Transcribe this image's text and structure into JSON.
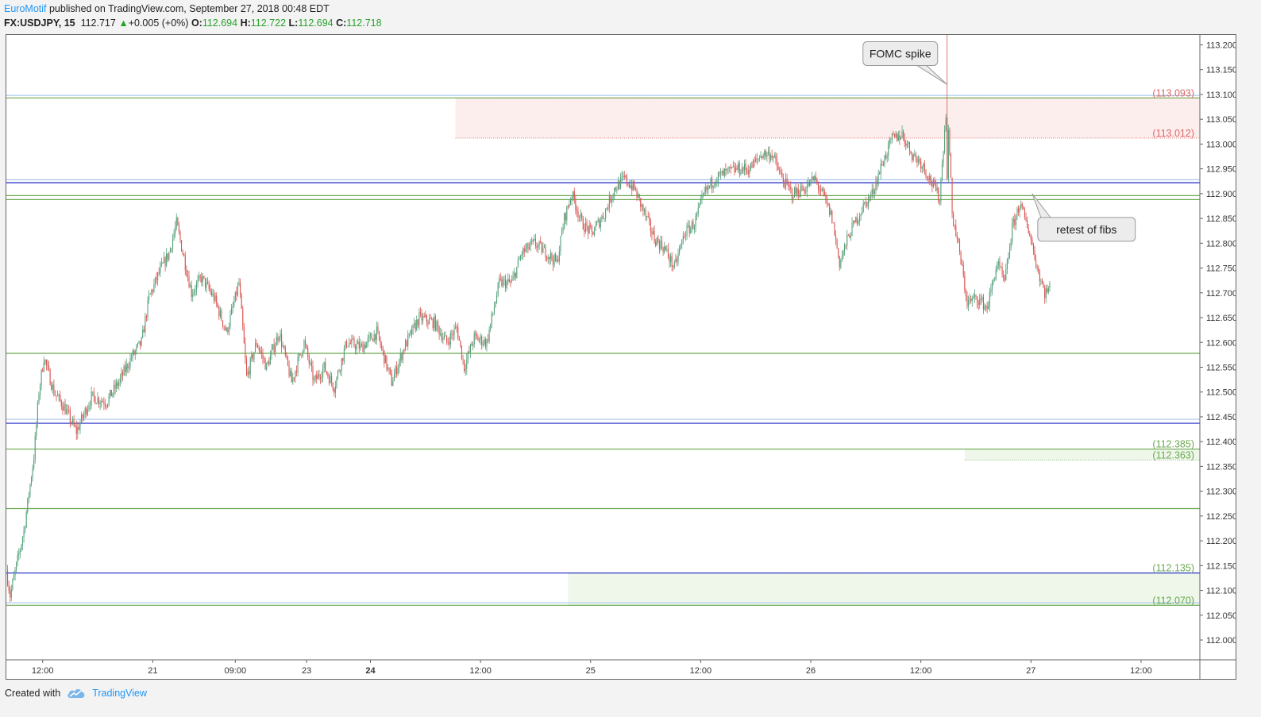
{
  "header": {
    "author": "EuroMotif",
    "published_text": " published on TradingView.com, September 27, 2018 00:48 EDT"
  },
  "symbol_line": {
    "symbol": "FX:USDJPY, 15",
    "last": "112.717",
    "change_arrow": "▲",
    "change": "+0.005 (+0%)",
    "o_label": "O:",
    "o": "112.694",
    "h_label": "H:",
    "h": "112.722",
    "l_label": "L:",
    "l": "112.694",
    "c_label": "C:",
    "c": "112.718"
  },
  "footer": {
    "created_with": "Created with",
    "brand": "TradingView",
    "logo_icon": "tradingview-cloud-icon"
  },
  "colors": {
    "up": "#53a07a",
    "down": "#d9534f",
    "green_line": "#6aa84f",
    "blue_line": "#1c25c8",
    "light_blue_line": "#a9c7ec",
    "red_zone": "#fdeeee",
    "green_zone": "#eef7ea",
    "red_label": "#e06666",
    "green_label": "#6aa84f"
  },
  "chart_data": {
    "type": "candlestick",
    "symbol": "FX:USDJPY",
    "interval": "15",
    "ylim": [
      111.96,
      113.22
    ],
    "y_ticks": [
      "112.000",
      "112.050",
      "112.100",
      "112.150",
      "112.200",
      "112.250",
      "112.300",
      "112.350",
      "112.400",
      "112.450",
      "112.500",
      "112.550",
      "112.600",
      "112.650",
      "112.700",
      "112.750",
      "112.800",
      "112.850",
      "112.900",
      "112.950",
      "113.000",
      "113.050",
      "113.100",
      "113.150",
      "113.200"
    ],
    "x_ticks": [
      {
        "label": "12:00",
        "bar": 29,
        "bold": false
      },
      {
        "label": "21",
        "bar": 117,
        "bold": false
      },
      {
        "label": "09:00",
        "bar": 183,
        "bold": false
      },
      {
        "label": "23",
        "bar": 240,
        "bold": false
      },
      {
        "label": "24",
        "bar": 291,
        "bold": true
      },
      {
        "label": "12:00",
        "bar": 379,
        "bold": false
      },
      {
        "label": "25",
        "bar": 467,
        "bold": false
      },
      {
        "label": "12:00",
        "bar": 555,
        "bold": false
      },
      {
        "label": "26",
        "bar": 643,
        "bold": false
      },
      {
        "label": "12:00",
        "bar": 731,
        "bold": false
      },
      {
        "label": "27",
        "bar": 819,
        "bold": false
      },
      {
        "label": "12:00",
        "bar": 907,
        "bold": false
      }
    ],
    "bars_visible": 954,
    "price_path": [
      [
        0,
        112.14
      ],
      [
        3,
        112.09
      ],
      [
        14,
        112.22
      ],
      [
        22,
        112.37
      ],
      [
        26,
        112.5
      ],
      [
        30,
        112.57
      ],
      [
        38,
        112.5
      ],
      [
        46,
        112.47
      ],
      [
        56,
        112.42
      ],
      [
        68,
        112.49
      ],
      [
        80,
        112.48
      ],
      [
        90,
        112.52
      ],
      [
        100,
        112.57
      ],
      [
        108,
        112.6
      ],
      [
        114,
        112.69
      ],
      [
        122,
        112.74
      ],
      [
        130,
        112.78
      ],
      [
        136,
        112.84
      ],
      [
        142,
        112.77
      ],
      [
        148,
        112.7
      ],
      [
        156,
        112.73
      ],
      [
        166,
        112.69
      ],
      [
        176,
        112.62
      ],
      [
        186,
        112.72
      ],
      [
        192,
        112.53
      ],
      [
        200,
        112.6
      ],
      [
        208,
        112.55
      ],
      [
        218,
        112.62
      ],
      [
        228,
        112.52
      ],
      [
        238,
        112.6
      ],
      [
        246,
        112.52
      ],
      [
        254,
        112.55
      ],
      [
        262,
        112.51
      ],
      [
        272,
        112.6
      ],
      [
        284,
        112.59
      ],
      [
        296,
        112.62
      ],
      [
        308,
        112.52
      ],
      [
        318,
        112.59
      ],
      [
        330,
        112.65
      ],
      [
        342,
        112.64
      ],
      [
        352,
        112.6
      ],
      [
        360,
        112.63
      ],
      [
        366,
        112.55
      ],
      [
        374,
        112.61
      ],
      [
        384,
        112.6
      ],
      [
        394,
        112.72
      ],
      [
        404,
        112.72
      ],
      [
        412,
        112.78
      ],
      [
        422,
        112.8
      ],
      [
        432,
        112.78
      ],
      [
        440,
        112.76
      ],
      [
        446,
        112.85
      ],
      [
        452,
        112.9
      ],
      [
        460,
        112.84
      ],
      [
        468,
        112.82
      ],
      [
        478,
        112.86
      ],
      [
        486,
        112.91
      ],
      [
        494,
        112.93
      ],
      [
        502,
        112.91
      ],
      [
        510,
        112.86
      ],
      [
        518,
        112.81
      ],
      [
        526,
        112.79
      ],
      [
        534,
        112.75
      ],
      [
        542,
        112.82
      ],
      [
        550,
        112.84
      ],
      [
        558,
        112.9
      ],
      [
        566,
        112.93
      ],
      [
        574,
        112.94
      ],
      [
        584,
        112.95
      ],
      [
        594,
        112.95
      ],
      [
        604,
        112.98
      ],
      [
        612,
        112.98
      ],
      [
        620,
        112.93
      ],
      [
        628,
        112.9
      ],
      [
        638,
        112.91
      ],
      [
        646,
        112.93
      ],
      [
        654,
        112.89
      ],
      [
        660,
        112.85
      ],
      [
        666,
        112.76
      ],
      [
        674,
        112.82
      ],
      [
        684,
        112.87
      ],
      [
        692,
        112.9
      ],
      [
        700,
        112.96
      ],
      [
        708,
        113.01
      ],
      [
        716,
        113.02
      ],
      [
        724,
        112.98
      ],
      [
        732,
        112.96
      ],
      [
        740,
        112.92
      ],
      [
        746,
        112.89
      ],
      [
        752,
        113.1
      ],
      [
        756,
        112.86
      ],
      [
        762,
        112.78
      ],
      [
        768,
        112.68
      ],
      [
        776,
        112.69
      ],
      [
        784,
        112.67
      ],
      [
        792,
        112.76
      ],
      [
        798,
        112.72
      ],
      [
        804,
        112.83
      ],
      [
        810,
        112.88
      ],
      [
        818,
        112.82
      ],
      [
        824,
        112.75
      ],
      [
        830,
        112.7
      ],
      [
        834,
        112.71
      ]
    ],
    "horizontal_lines": [
      {
        "price": 113.093,
        "color": "green_line",
        "label": "(113.093)",
        "label_color": "red_label"
      },
      {
        "price": 113.098,
        "color": "light_blue_line"
      },
      {
        "price": 112.928,
        "color": "light_blue_line"
      },
      {
        "price": 112.922,
        "color": "blue_line"
      },
      {
        "price": 112.896,
        "color": "green_line"
      },
      {
        "price": 112.888,
        "color": "green_line"
      },
      {
        "price": 112.578,
        "color": "green_line"
      },
      {
        "price": 112.445,
        "color": "light_blue_line"
      },
      {
        "price": 112.437,
        "color": "blue_line"
      },
      {
        "price": 112.385,
        "color": "green_line",
        "label": "(112.385)",
        "label_color": "green_label"
      },
      {
        "price": 112.265,
        "color": "green_line"
      },
      {
        "price": 112.135,
        "color": "blue_line",
        "label": "(112.135)",
        "label_color": "green_label"
      },
      {
        "price": 112.075,
        "color": "light_blue_line"
      },
      {
        "price": 112.07,
        "color": "green_line",
        "label": "(112.070)",
        "label_color": "green_label"
      }
    ],
    "zones": [
      {
        "from_bar": 359,
        "to_bar": 954,
        "top": 113.093,
        "bottom": 113.012,
        "color": "red_zone",
        "labels": [
          "(113.093)",
          "(113.012)"
        ],
        "label_color": "red_label"
      },
      {
        "from_bar": 766,
        "to_bar": 954,
        "top": 112.385,
        "bottom": 112.363,
        "color": "green_zone",
        "labels": [
          "(112.385)",
          "(112.363)"
        ],
        "label_color": "green_label"
      },
      {
        "from_bar": 449,
        "to_bar": 954,
        "top": 112.135,
        "bottom": 112.07,
        "color": "green_zone",
        "labels": [
          "(112.135)",
          "(112.070)"
        ],
        "label_color": "green_label"
      }
    ],
    "price_labels": [
      {
        "text": "(113.093)",
        "price": 113.093,
        "color": "red_label"
      },
      {
        "text": "(113.012)",
        "price": 113.012,
        "color": "red_label"
      },
      {
        "text": "(112.385)",
        "price": 112.385,
        "color": "green_label"
      },
      {
        "text": "(112.363)",
        "price": 112.363,
        "color": "green_label"
      },
      {
        "text": "(112.135)",
        "price": 112.135,
        "color": "green_label"
      },
      {
        "text": "(112.070)",
        "price": 112.07,
        "color": "green_label"
      }
    ],
    "annotations": [
      {
        "text": "FOMC spike",
        "target_bar": 752,
        "target_price": 113.12,
        "place": "above-left"
      },
      {
        "text": "retest of fibs",
        "target_bar": 820,
        "target_price": 112.9,
        "place": "below-right"
      }
    ]
  }
}
